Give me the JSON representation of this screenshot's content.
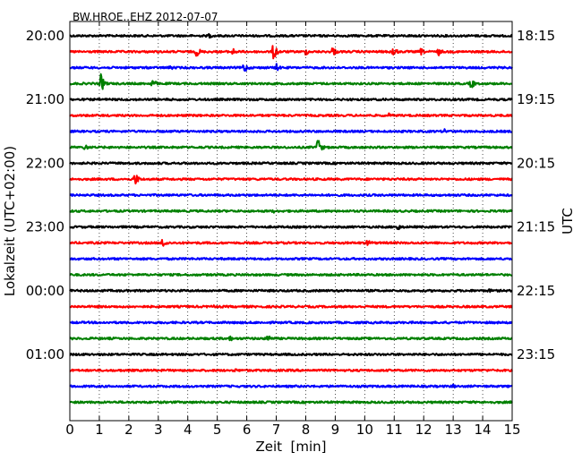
{
  "chart_data": {
    "type": "line",
    "title": "BW.HROE..EHZ 2012-07-07",
    "xlabel": "Zeit  [min]",
    "ylabel_left": "Lokalzeit (UTC+02:00)",
    "ylabel_right": "UTC",
    "xlim": [
      0,
      15
    ],
    "x_ticks": [
      "0",
      "1",
      "2",
      "3",
      "4",
      "5",
      "6",
      "7",
      "8",
      "9",
      "10",
      "11",
      "12",
      "13",
      "14",
      "15"
    ],
    "grid": "vertical dotted",
    "trace_count": 24,
    "trace_interval_min": 15,
    "trace_colors": [
      "#000000",
      "#ff0000",
      "#0000ff",
      "#008000"
    ],
    "y_ticks_left": [
      {
        "trace": 0,
        "label": "20:00"
      },
      {
        "trace": 4,
        "label": "21:00"
      },
      {
        "trace": 8,
        "label": "22:00"
      },
      {
        "trace": 12,
        "label": "23:00"
      },
      {
        "trace": 16,
        "label": "00:00"
      },
      {
        "trace": 20,
        "label": "01:00"
      }
    ],
    "y_ticks_right": [
      {
        "trace": 0,
        "label": "18:15"
      },
      {
        "trace": 4,
        "label": "19:15"
      },
      {
        "trace": 8,
        "label": "20:15"
      },
      {
        "trace": 12,
        "label": "21:15"
      },
      {
        "trace": 16,
        "label": "22:15"
      },
      {
        "trace": 20,
        "label": "23:15"
      }
    ],
    "events": [
      {
        "trace": 0,
        "t": 4.7,
        "amp": 0.3
      },
      {
        "trace": 1,
        "t": 4.3,
        "amp": 0.55
      },
      {
        "trace": 1,
        "t": 5.5,
        "amp": 0.45
      },
      {
        "trace": 1,
        "t": 6.9,
        "amp": 0.9
      },
      {
        "trace": 1,
        "t": 8.0,
        "amp": 0.35
      },
      {
        "trace": 1,
        "t": 8.9,
        "amp": 0.55
      },
      {
        "trace": 1,
        "t": 10.95,
        "amp": 0.6
      },
      {
        "trace": 1,
        "t": 11.9,
        "amp": 0.35
      },
      {
        "trace": 1,
        "t": 12.5,
        "amp": 0.4
      },
      {
        "trace": 2,
        "t": 3.4,
        "amp": 0.3
      },
      {
        "trace": 2,
        "t": 5.9,
        "amp": 0.6
      },
      {
        "trace": 2,
        "t": 7.0,
        "amp": 0.4
      },
      {
        "trace": 3,
        "t": 1.05,
        "amp": 0.9
      },
      {
        "trace": 3,
        "t": 2.8,
        "amp": 0.5
      },
      {
        "trace": 3,
        "t": 13.6,
        "amp": 0.55
      },
      {
        "trace": 5,
        "t": 10.8,
        "amp": 0.25
      },
      {
        "trace": 6,
        "t": 12.7,
        "amp": 0.3
      },
      {
        "trace": 7,
        "t": 0.5,
        "amp": 0.35
      },
      {
        "trace": 7,
        "t": 8.4,
        "amp": 0.9
      },
      {
        "trace": 9,
        "t": 2.2,
        "amp": 0.7
      },
      {
        "trace": 11,
        "t": 6.9,
        "amp": 0.2
      },
      {
        "trace": 12,
        "t": 11.1,
        "amp": 0.4
      },
      {
        "trace": 13,
        "t": 3.15,
        "amp": 0.6
      },
      {
        "trace": 13,
        "t": 10.1,
        "amp": 0.4
      },
      {
        "trace": 16,
        "t": 14.2,
        "amp": 0.25
      },
      {
        "trace": 17,
        "t": 4.9,
        "amp": 0.2
      },
      {
        "trace": 19,
        "t": 5.4,
        "amp": 0.35
      },
      {
        "trace": 19,
        "t": 6.7,
        "amp": 0.5
      },
      {
        "trace": 21,
        "t": 5.6,
        "amp": 0.2
      },
      {
        "trace": 22,
        "t": 13.0,
        "amp": 0.25
      }
    ]
  }
}
